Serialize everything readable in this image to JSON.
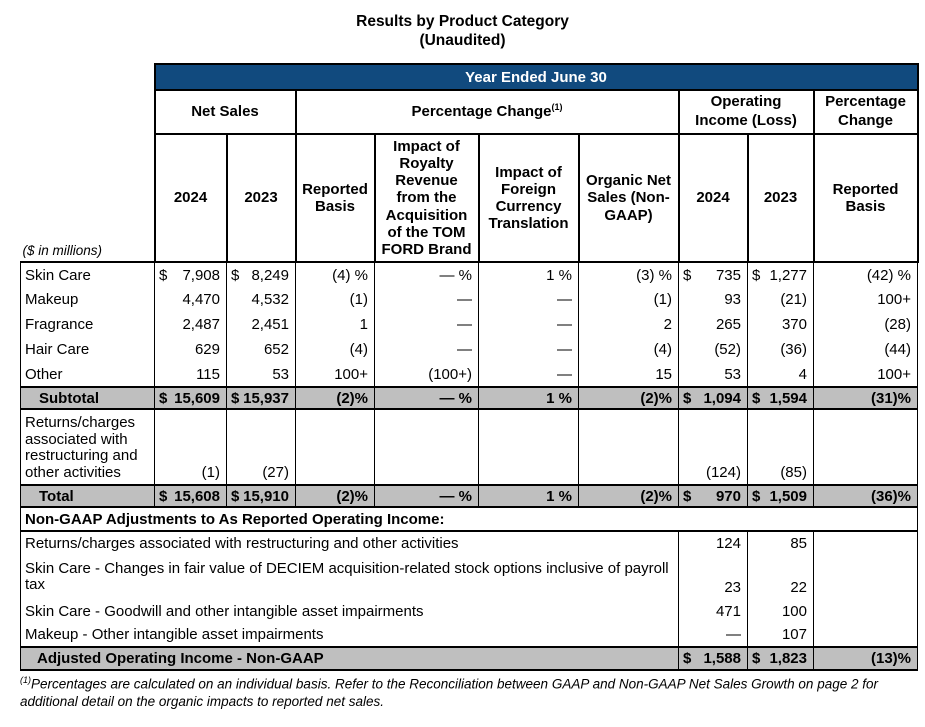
{
  "title": {
    "line1": "Results by Product Category",
    "line2": "(Unaudited)"
  },
  "colors": {
    "header_blue": "#114A7E",
    "row_gray": "#BFBFBF",
    "border": "#000000"
  },
  "header": {
    "year_band": "Year Ended June 30",
    "group_net_sales": "Net Sales",
    "group_pct_change": "Percentage Change",
    "group_pct_change_sup": "(1)",
    "group_operating_income": "Operating Income (Loss)",
    "group_pct_change2": "Percentage Change",
    "units_note": "($ in millions)",
    "columns": {
      "ns_2024": "2024",
      "ns_2023": "2023",
      "reported_basis": "Reported Basis",
      "royalty": "Impact of Royalty Revenue from the Acquisition of the TOM FORD Brand",
      "foreign_currency": "Impact of Foreign Currency Translation",
      "organic": "Organic Net Sales (Non-GAAP)",
      "oi_2024": "2024",
      "oi_2023": "2023",
      "pct_reported_basis": "Reported Basis"
    }
  },
  "table": {
    "rows": [
      {
        "kind": "product",
        "label": "Skin Care",
        "cells": [
          "$ 7,908",
          "$ 8,249",
          "(4) %",
          "— %",
          "1 %",
          "(3) %",
          "$ 735",
          "$ 1,277",
          "(42) %"
        ]
      },
      {
        "kind": "product",
        "label": "Makeup",
        "cells": [
          "4,470",
          "4,532",
          "(1)",
          "—",
          "—",
          "(1)",
          "93",
          "(21)",
          "100+"
        ]
      },
      {
        "kind": "product",
        "label": "Fragrance",
        "cells": [
          "2,487",
          "2,451",
          "1",
          "—",
          "—",
          "2",
          "265",
          "370",
          "(28)"
        ]
      },
      {
        "kind": "product",
        "label": "Hair Care",
        "cells": [
          "629",
          "652",
          "(4)",
          "—",
          "—",
          "(4)",
          "(52)",
          "(36)",
          "(44)"
        ]
      },
      {
        "kind": "product",
        "label": "Other",
        "cells": [
          "115",
          "53",
          "100+",
          "(100+)",
          "—",
          "15",
          "53",
          "4",
          "100+"
        ]
      },
      {
        "kind": "heavy",
        "label": "Subtotal",
        "cells": [
          "$15,609",
          "$15,937",
          "(2)%",
          "— %",
          "1 %",
          "(2)%",
          "$ 1,094",
          "$ 1,594",
          "(31)%"
        ]
      },
      {
        "kind": "tall",
        "label": "Returns/charges associated with restructuring and other activities",
        "cells": [
          "(1)",
          "(27)",
          "",
          "",
          "",
          "",
          "(124)",
          "(85)",
          ""
        ]
      },
      {
        "kind": "heavy",
        "label": "Total",
        "cells": [
          "$15,608",
          "$15,910",
          "(2)%",
          "— %",
          "1 %",
          "(2)%",
          "$ 970",
          "$ 1,509",
          "(36)%"
        ]
      },
      {
        "kind": "section",
        "label": "Non-GAAP Adjustments to As Reported Operating Income:"
      },
      {
        "kind": "ng",
        "label": "Returns/charges associated with restructuring and other activities",
        "cells": [
          "124",
          "85",
          ""
        ]
      },
      {
        "kind": "ng2",
        "label": "Skin Care - Changes in fair value of DECIEM acquisition-related stock options inclusive of payroll tax",
        "cells": [
          "23",
          "22",
          ""
        ]
      },
      {
        "kind": "ng",
        "label": "Skin Care - Goodwill and other intangible asset impairments",
        "cells": [
          "471",
          "100",
          ""
        ]
      },
      {
        "kind": "ng",
        "label": "Makeup - Other intangible asset impairments",
        "cells": [
          "—",
          "107",
          ""
        ]
      },
      {
        "kind": "heavyng",
        "label": "Adjusted Operating Income - Non-GAAP",
        "cells": [
          "$ 1,588",
          "$ 1,823",
          "(13)%"
        ]
      }
    ]
  },
  "footnote": {
    "sup": "(1)",
    "text": "Percentages are calculated on an individual basis. Refer to the Reconciliation between GAAP and Non-GAAP Net Sales Growth on page 2 for additional detail on the organic impacts to reported net sales."
  }
}
